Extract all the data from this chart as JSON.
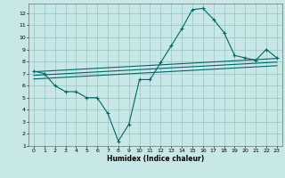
{
  "title": "",
  "xlabel": "Humidex (Indice chaleur)",
  "bg_color": "#c8e8e8",
  "grid_color": "#a0c8c8",
  "line_color": "#006666",
  "xlim": [
    -0.5,
    23.5
  ],
  "ylim": [
    1,
    12.8
  ],
  "xticks": [
    0,
    1,
    2,
    3,
    4,
    5,
    6,
    7,
    8,
    9,
    10,
    11,
    12,
    13,
    14,
    15,
    16,
    17,
    18,
    19,
    20,
    21,
    22,
    23
  ],
  "yticks": [
    1,
    2,
    3,
    4,
    5,
    6,
    7,
    8,
    9,
    10,
    11,
    12
  ],
  "data_x": [
    0,
    1,
    2,
    3,
    4,
    5,
    6,
    7,
    8,
    9,
    10,
    11,
    12,
    13,
    14,
    15,
    16,
    17,
    18,
    19,
    20,
    21,
    22,
    23
  ],
  "data_y": [
    7.2,
    7.0,
    6.0,
    5.5,
    5.5,
    5.0,
    5.0,
    3.7,
    1.4,
    2.8,
    6.5,
    6.5,
    7.9,
    9.3,
    10.7,
    12.3,
    12.4,
    11.5,
    10.4,
    8.5,
    8.3,
    8.1,
    9.0,
    8.3
  ],
  "trend1_x": [
    0,
    23
  ],
  "trend1_y": [
    7.15,
    8.25
  ],
  "trend2_x": [
    0,
    23
  ],
  "trend2_y": [
    6.85,
    7.95
  ],
  "trend3_x": [
    0,
    23
  ],
  "trend3_y": [
    6.55,
    7.65
  ]
}
